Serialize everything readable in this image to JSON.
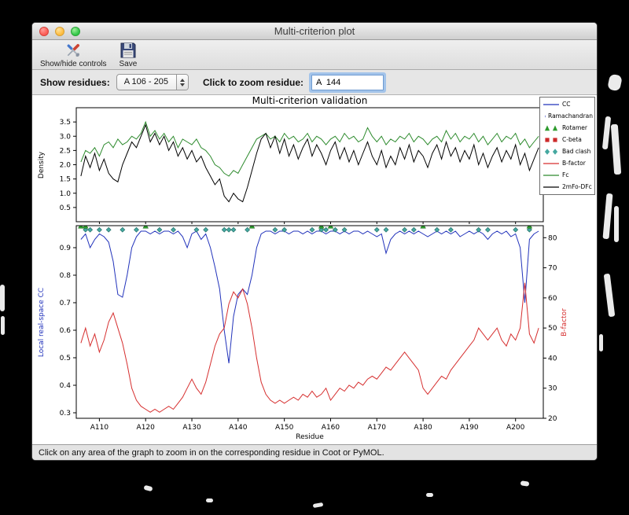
{
  "window": {
    "title": "Multi-criterion plot"
  },
  "toolbar": {
    "show_hide_label": "Show/hide controls",
    "save_label": "Save"
  },
  "controls": {
    "show_residues_label": "Show residues:",
    "residue_range_value": "A 106 - 205",
    "zoom_label": "Click to zoom residue:",
    "zoom_value": "A  144"
  },
  "status_bar": {
    "text": "Click on any area of the graph to zoom in on the corresponding residue in Coot or PyMOL."
  },
  "chart_data": {
    "type": "line",
    "title": "Multi-criterion validation",
    "xlabel": "Residue",
    "x_start": 106,
    "x_end": 205,
    "xlim": [
      105,
      206
    ],
    "xticks": [
      110,
      120,
      130,
      140,
      150,
      160,
      170,
      180,
      190,
      200
    ],
    "xtick_labels": [
      "A110",
      "A120",
      "A130",
      "A140",
      "A150",
      "A160",
      "A170",
      "A180",
      "A190",
      "A200"
    ],
    "top_plot": {
      "ylabel": "Density",
      "ylim": [
        0.0,
        4.0
      ],
      "yticks": [
        0.5,
        1.0,
        1.5,
        2.0,
        2.5,
        3.0,
        3.5
      ],
      "series": [
        {
          "name": "Fc",
          "color": "#2e8b2e",
          "values": [
            2.1,
            2.5,
            2.4,
            2.6,
            2.3,
            2.7,
            2.8,
            2.6,
            2.9,
            2.7,
            2.8,
            3.0,
            2.9,
            3.1,
            3.5,
            3.0,
            3.2,
            2.9,
            3.1,
            2.8,
            3.0,
            2.6,
            2.9,
            2.8,
            2.7,
            2.9,
            2.6,
            2.5,
            2.3,
            2.0,
            1.9,
            1.7,
            1.6,
            1.8,
            1.7,
            2.0,
            2.3,
            2.6,
            2.9,
            3.0,
            3.1,
            2.9,
            3.0,
            2.8,
            3.1,
            2.9,
            3.0,
            2.8,
            2.9,
            3.1,
            2.8,
            3.0,
            2.9,
            2.7,
            2.9,
            3.0,
            2.8,
            3.1,
            2.9,
            3.0,
            2.8,
            2.9,
            3.3,
            3.0,
            2.8,
            3.0,
            2.7,
            2.9,
            2.8,
            3.0,
            2.9,
            3.1,
            2.8,
            3.0,
            2.9,
            2.7,
            2.9,
            3.0,
            2.8,
            3.2,
            2.9,
            3.1,
            2.8,
            3.0,
            2.9,
            3.1,
            2.8,
            3.0,
            2.7,
            2.9,
            3.1,
            2.8,
            3.0,
            2.9,
            3.1,
            2.7,
            2.9,
            2.6,
            2.8,
            3.0
          ]
        },
        {
          "name": "2mFo-DFc",
          "color": "#000000",
          "values": [
            1.6,
            2.3,
            1.9,
            2.4,
            1.8,
            2.2,
            1.7,
            1.5,
            1.4,
            2.0,
            2.4,
            2.8,
            2.6,
            3.0,
            3.4,
            2.8,
            3.1,
            2.7,
            3.0,
            2.5,
            2.8,
            2.3,
            2.6,
            2.2,
            2.5,
            2.1,
            2.3,
            1.9,
            1.6,
            1.3,
            1.5,
            0.9,
            0.7,
            1.0,
            0.8,
            0.7,
            1.2,
            1.8,
            2.4,
            2.9,
            3.1,
            2.6,
            3.0,
            2.4,
            2.9,
            2.3,
            2.7,
            2.2,
            2.6,
            2.9,
            2.3,
            2.7,
            2.4,
            2.0,
            2.5,
            2.8,
            2.2,
            2.6,
            2.1,
            2.5,
            2.0,
            2.4,
            2.8,
            2.3,
            2.0,
            2.5,
            1.9,
            2.3,
            2.0,
            2.6,
            2.2,
            2.7,
            2.1,
            2.5,
            2.3,
            1.9,
            2.4,
            2.7,
            2.2,
            2.8,
            2.3,
            2.6,
            2.1,
            2.5,
            2.2,
            2.7,
            2.0,
            2.4,
            1.9,
            2.3,
            2.6,
            2.1,
            2.5,
            2.2,
            2.7,
            2.0,
            2.4,
            1.8,
            2.2,
            2.6
          ]
        }
      ]
    },
    "bottom_plot": {
      "ylabel_left": "Local real-space CC",
      "ylabel_left_color": "#2233bb",
      "ylim_left": [
        0.28,
        0.98
      ],
      "yticks_left": [
        0.3,
        0.4,
        0.5,
        0.6,
        0.7,
        0.8,
        0.9
      ],
      "ylabel_right": "B-factor",
      "ylabel_right_color": "#d62f2f",
      "ylim_right": [
        20,
        84
      ],
      "yticks_right": [
        20,
        30,
        40,
        50,
        60,
        70,
        80
      ],
      "series": [
        {
          "name": "CC",
          "axis": "left",
          "color": "#2233bb",
          "values": [
            0.93,
            0.95,
            0.9,
            0.93,
            0.95,
            0.94,
            0.92,
            0.85,
            0.73,
            0.72,
            0.8,
            0.9,
            0.94,
            0.96,
            0.96,
            0.95,
            0.96,
            0.95,
            0.96,
            0.96,
            0.95,
            0.96,
            0.94,
            0.9,
            0.95,
            0.96,
            0.93,
            0.95,
            0.9,
            0.83,
            0.75,
            0.6,
            0.48,
            0.65,
            0.73,
            0.75,
            0.73,
            0.8,
            0.9,
            0.95,
            0.96,
            0.96,
            0.95,
            0.96,
            0.96,
            0.95,
            0.96,
            0.96,
            0.95,
            0.96,
            0.95,
            0.96,
            0.96,
            0.95,
            0.96,
            0.96,
            0.95,
            0.96,
            0.95,
            0.96,
            0.96,
            0.95,
            0.96,
            0.95,
            0.94,
            0.95,
            0.88,
            0.93,
            0.95,
            0.96,
            0.95,
            0.96,
            0.95,
            0.96,
            0.95,
            0.94,
            0.95,
            0.96,
            0.95,
            0.96,
            0.95,
            0.96,
            0.94,
            0.95,
            0.96,
            0.95,
            0.96,
            0.95,
            0.93,
            0.95,
            0.96,
            0.95,
            0.96,
            0.94,
            0.95,
            0.9,
            0.7,
            0.93,
            0.95,
            0.96
          ]
        },
        {
          "name": "B-factor",
          "axis": "right",
          "color": "#d62f2f",
          "values": [
            45,
            50,
            44,
            48,
            42,
            46,
            52,
            55,
            50,
            45,
            38,
            30,
            26,
            24,
            23,
            22,
            23,
            22,
            23,
            24,
            23,
            25,
            27,
            30,
            33,
            30,
            28,
            32,
            38,
            44,
            48,
            50,
            58,
            62,
            60,
            63,
            58,
            50,
            40,
            32,
            28,
            26,
            25,
            26,
            25,
            26,
            27,
            26,
            28,
            27,
            29,
            27,
            28,
            30,
            26,
            28,
            30,
            29,
            31,
            30,
            32,
            31,
            33,
            34,
            33,
            35,
            37,
            36,
            38,
            40,
            42,
            40,
            38,
            36,
            30,
            28,
            30,
            32,
            34,
            33,
            36,
            38,
            40,
            42,
            44,
            46,
            50,
            48,
            46,
            48,
            50,
            46,
            44,
            48,
            46,
            50,
            65,
            48,
            45,
            50
          ]
        }
      ],
      "markers": [
        {
          "name": "Bad clash",
          "shape": "diamond",
          "color": "#45a8a0",
          "edge": "#1f6b62",
          "y": 0.965,
          "residues": [
            107,
            108,
            110,
            112,
            115,
            118,
            123,
            126,
            131,
            133,
            137,
            138,
            139,
            142,
            148,
            150,
            156,
            158,
            159,
            161,
            163,
            170,
            172,
            176,
            178,
            183,
            186,
            192,
            194,
            200,
            203
          ]
        },
        {
          "name": "Rotamer",
          "shape": "triangle",
          "color": "#2e9b2e",
          "edge": "#1d6b1d",
          "y": 0.978,
          "residues": [
            106,
            107,
            120,
            143,
            158,
            160,
            180,
            203
          ]
        }
      ]
    },
    "legend": [
      {
        "label": "CC",
        "symbol": "line",
        "color": "#2233bb"
      },
      {
        "label": "Ramachandran",
        "symbol": "circle",
        "color": "#2233bb"
      },
      {
        "label": "Rotamer",
        "symbol": "triangle",
        "color": "#2e9b2e"
      },
      {
        "label": "C-beta",
        "symbol": "square",
        "color": "#cc2a2a"
      },
      {
        "label": "Bad clash",
        "symbol": "diamond",
        "color": "#45a8a0"
      },
      {
        "label": "B-factor",
        "symbol": "line",
        "color": "#d62f2f"
      },
      {
        "label": "Fc",
        "symbol": "line",
        "color": "#2e8b2e"
      },
      {
        "label": "2mFo-DFc",
        "symbol": "line",
        "color": "#000000"
      }
    ]
  }
}
